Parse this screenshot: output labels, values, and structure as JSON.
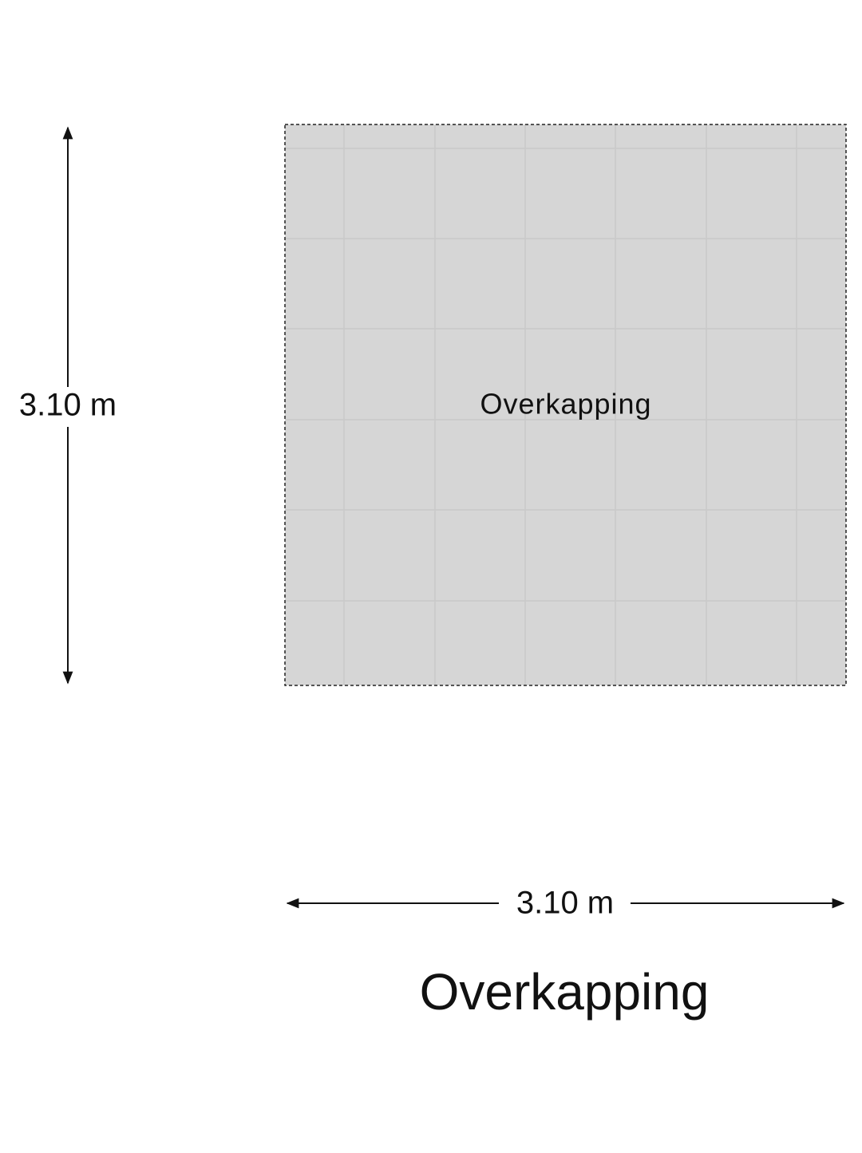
{
  "room": {
    "label": "Overkapping"
  },
  "dimensions": {
    "height": "3.10 m",
    "width": "3.10 m"
  },
  "footer": {
    "title": "Overkapping"
  }
}
